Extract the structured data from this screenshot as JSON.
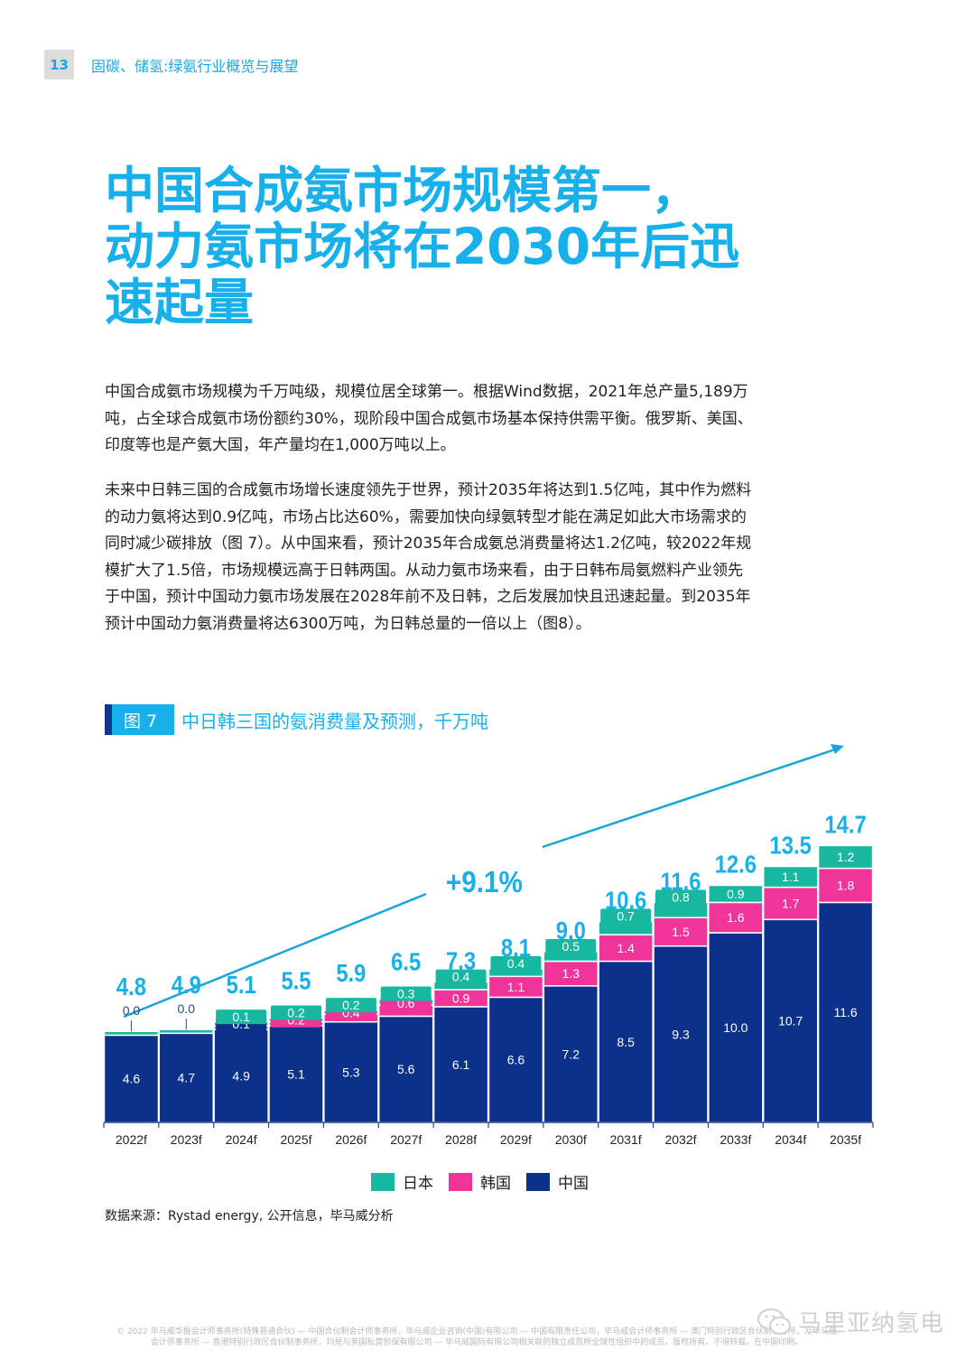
{
  "header": {
    "page_number": "13",
    "running_title": "固碳、储氢:绿氨行业概览与展望"
  },
  "headline": {
    "lines": [
      "中国合成氨市场规模第一，",
      "动力氨市场将在2030年后迅",
      "速起量"
    ]
  },
  "body": {
    "paragraph1": "中国合成氨市场规模为千万吨级，规模位居全球第一。根据Wind数据，2021年总产量5,189万吨，占全球合成氨市场份额约30%，现阶段中国合成氨市场基本保持供需平衡。俄罗斯、美国、印度等也是产氨大国，年产量均在1,000万吨以上。",
    "paragraph2": "未来中日韩三国的合成氨市场增长速度领先于世界，预计2035年将达到1.5亿吨，其中作为燃料的动力氨将达到0.9亿吨，市场占比达60%，需要加快向绿氨转型才能在满足如此大市场需求的同时减少碳排放（图 7）。从中国来看，预计2035年合成氨总消费量将达1.2亿吨，较2022年规模扩大了1.5倍，市场规模远高于日韩两国。从动力氨市场来看，由于日韩布局氨燃料产业领先于中国，预计中国动力氨市场发展在2028年前不及日韩，之后发展加快且迅速起量。到2035年预计中国动力氨消费量将达6300万吨，为日韩总量的一倍以上（图8）。"
  },
  "figure": {
    "tag": "图 7",
    "title": "中日韩三国的氨消费量及预测，千万吨"
  },
  "chart_data": {
    "type": "bar",
    "stacked": true,
    "title": "中日韩三国的氨消费量及预测，千万吨",
    "xlabel": "",
    "ylabel": "",
    "categories": [
      "2022f",
      "2023f",
      "2024f",
      "2025f",
      "2026f",
      "2027f",
      "2028f",
      "2029f",
      "2030f",
      "2031f",
      "2032f",
      "2033f",
      "2034f",
      "2035f"
    ],
    "series": [
      {
        "name": "中国",
        "color": "#0c318a",
        "values": [
          4.6,
          4.7,
          4.9,
          5.1,
          5.3,
          5.6,
          6.1,
          6.6,
          7.2,
          8.5,
          9.3,
          10.0,
          10.7,
          11.6
        ]
      },
      {
        "name": "韩国",
        "color": "#f0349a",
        "values": [
          0.0,
          0.0,
          0.1,
          0.2,
          0.4,
          0.6,
          0.9,
          1.1,
          1.3,
          1.4,
          1.5,
          1.6,
          1.7,
          1.8
        ]
      },
      {
        "name": "日本",
        "color": "#18b8a0",
        "values": [
          0.2,
          0.2,
          0.1,
          0.2,
          0.2,
          0.3,
          0.4,
          0.4,
          0.5,
          0.7,
          0.8,
          0.9,
          1.1,
          1.2
        ]
      }
    ],
    "segment_labels": {
      "中国": [
        "4.6",
        "4.7",
        "4.9",
        "5.1",
        "5.3",
        "5.6",
        "6.1",
        "6.6",
        "7.2",
        "8.5",
        "9.3",
        "10.0",
        "10.7",
        "11.6"
      ],
      "韩国": [
        "0.0",
        "0.0",
        "0.1",
        "0.2",
        "0.4",
        "0.6",
        "0.9",
        "1.1",
        "1.3",
        "1.4",
        "1.5",
        "1.6",
        "1.7",
        "1.8"
      ],
      "日本": [
        "",
        "",
        "0.1",
        "0.2",
        "0.2",
        "0.3",
        "0.4",
        "0.4",
        "0.5",
        "0.7",
        "0.8",
        "0.9",
        "1.1",
        "1.2"
      ]
    },
    "totals": [
      "4.8",
      "4.9",
      "5.1",
      "5.5",
      "5.9",
      "6.5",
      "7.3",
      "8.1",
      "9.0",
      "10.6",
      "11.6",
      "12.6",
      "13.5",
      "14.7"
    ],
    "annotation": {
      "text": "+9.1%",
      "meaning": "CAGR growth arrow"
    },
    "ylim": [
      0,
      15
    ],
    "grid": false,
    "legend_position": "bottom-center",
    "legend": [
      {
        "name": "日本",
        "color": "#18b8a0"
      },
      {
        "name": "韩国",
        "color": "#f0349a"
      },
      {
        "name": "中国",
        "color": "#0c318a"
      }
    ],
    "accent_color": "#18b0ea"
  },
  "source": "数据来源：Rystad energy, 公开信息，毕马威分析",
  "footer": {
    "line1": "© 2022 毕马威华振会计师事务所(特殊普通合伙) — 中国合伙制会计师事务所，毕马威企业咨询(中国)有限公司 — 中国有限责任公司，毕马威会计师事务所 — 澳门特别行政区合伙制事务所，及毕马威",
    "line2": "会计师事务所 — 香港特别行政区合伙制事务所，均是与英国私营担保有限公司 — 毕马威国际有限公司相关联的独立成员所全球性组织中的成员。版权所有，不得转载。在中国印刷。"
  },
  "watermark": {
    "icon": "wechat-icon",
    "text": "马里亚纳氢电"
  }
}
